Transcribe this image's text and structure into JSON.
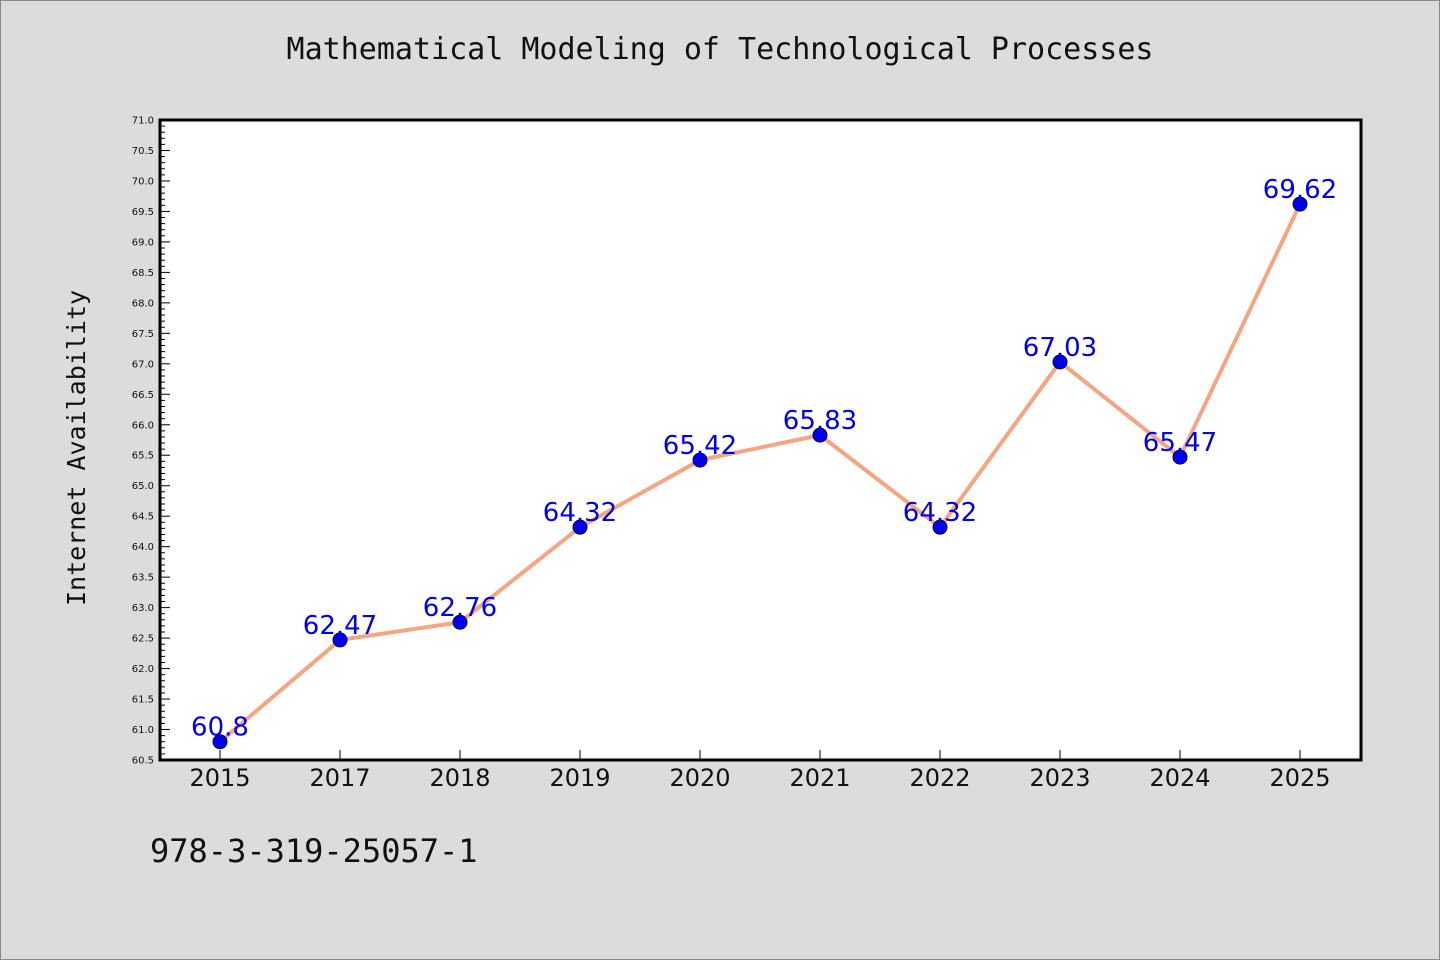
{
  "footer": {
    "code": "978-3-319-25057-1"
  },
  "chart_data": {
    "type": "line",
    "title": "Mathematical Modeling of Technological Processes",
    "xlabel": "",
    "ylabel": "Internet Availability",
    "categories": [
      "2015",
      "2017",
      "2018",
      "2019",
      "2020",
      "2021",
      "2022",
      "2023",
      "2024",
      "2025"
    ],
    "series": [
      {
        "values": [
          60.8,
          62.47,
          62.76,
          64.32,
          65.42,
          65.83,
          64.32,
          67.03,
          65.47,
          69.62
        ],
        "labels": [
          "60.8",
          "62.47",
          "62.76",
          "64.32",
          "65.42",
          "65.83",
          "64.32",
          "67.03",
          "65.47",
          "69.62"
        ],
        "line_color": "#f4a582",
        "marker_color": "#0000ee"
      }
    ],
    "ylim": [
      60.5,
      71.0
    ],
    "yticks": [
      "60.5",
      "61.0",
      "61.5",
      "62.0",
      "62.5",
      "63.0",
      "63.5",
      "64.0",
      "64.5",
      "65.0",
      "65.5",
      "66.0",
      "66.5",
      "67.0",
      "67.5",
      "68.0",
      "68.5",
      "69.0",
      "69.5",
      "70.0",
      "70.5",
      "71.0"
    ],
    "grid": false,
    "legend": "none"
  }
}
